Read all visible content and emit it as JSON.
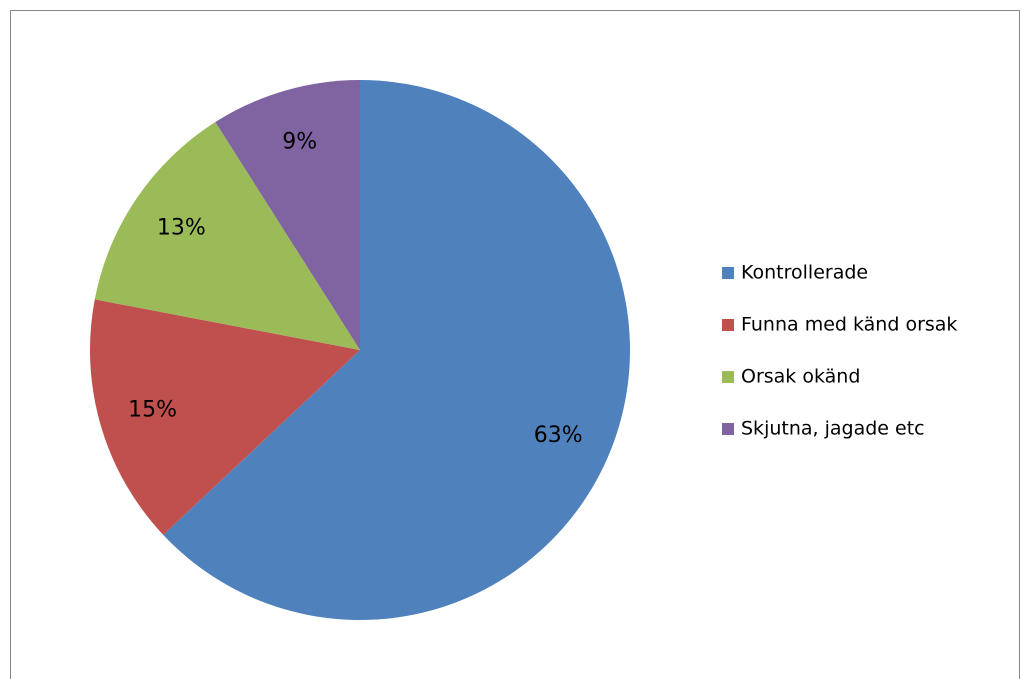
{
  "chart_data": {
    "type": "pie",
    "categories": [
      "Kontrollerade",
      "Funna med känd orsak",
      "Orsak okänd",
      "Skjutna, jagade etc"
    ],
    "values": [
      63,
      15,
      13,
      9
    ],
    "value_labels": [
      "63%",
      "15%",
      "13%",
      "9%"
    ],
    "colors": [
      "#4f81bd",
      "#c0504d",
      "#9bbb59",
      "#8064a2"
    ],
    "legend": "right"
  }
}
